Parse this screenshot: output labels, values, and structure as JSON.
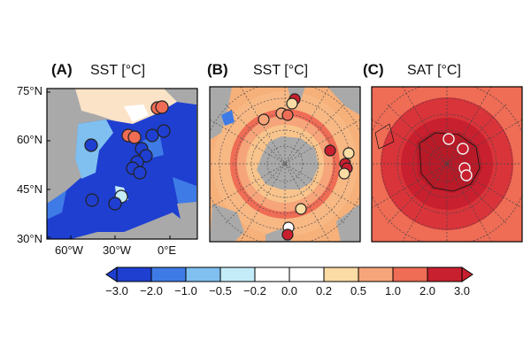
{
  "panels": [
    {
      "id": "A",
      "label": "(A)",
      "title": "SST [°C]"
    },
    {
      "id": "B",
      "label": "(B)",
      "title": "SST [°C]"
    },
    {
      "id": "C",
      "label": "(C)",
      "title": "SAT [°C]"
    }
  ],
  "map_a": {
    "lat_labels": [
      "75°N",
      "60°N",
      "45°N",
      "30°N"
    ],
    "lon_labels": [
      "60°W",
      "30°W",
      "0°E"
    ]
  },
  "colorbar": {
    "ticks": [
      "−3.0",
      "−2.0",
      "−1.0",
      "−0.5",
      "−0.2",
      "0.0",
      "0.2",
      "0.5",
      "1.0",
      "2.0",
      "3.0"
    ],
    "colors": [
      "#1f3fd0",
      "#3f7be6",
      "#7fc0f0",
      "#c4ecf8",
      "#ffffff",
      "#ffffff",
      "#fbdcA4",
      "#f6a57a",
      "#ef6c55",
      "#c8202e"
    ]
  }
}
